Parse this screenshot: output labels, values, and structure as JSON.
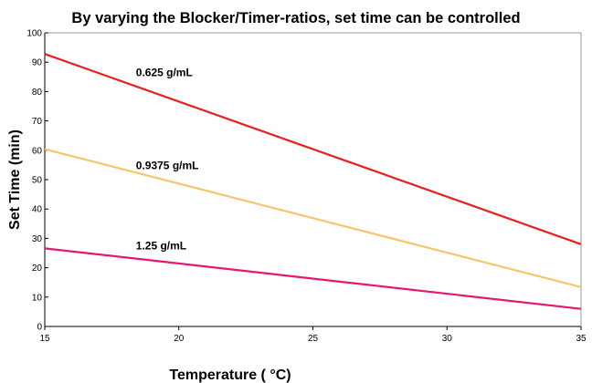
{
  "chart_data": {
    "type": "line",
    "title": "By varying the Blocker/Timer-ratios, set time can be controlled",
    "xlabel": "Temperature ( °C)",
    "ylabel": "Set Time (min)",
    "xlim": [
      15,
      35
    ],
    "ylim": [
      0,
      100
    ],
    "xticks": [
      15,
      20,
      25,
      30,
      35
    ],
    "yticks": [
      0,
      10,
      20,
      30,
      40,
      50,
      60,
      70,
      80,
      90,
      100
    ],
    "grid": false,
    "legend": "none",
    "series": [
      {
        "label": "0.625 g/mL",
        "color": "#e8201e",
        "x": [
          15,
          35
        ],
        "y": [
          92.8,
          28.0
        ],
        "label_at": [
          18.4,
          85.3
        ]
      },
      {
        "label": "0.9375 g/mL",
        "color": "#f5c56a",
        "x": [
          15,
          35
        ],
        "y": [
          60.4,
          13.4
        ],
        "label_at": [
          18.4,
          53.6
        ]
      },
      {
        "label": "1.25 g/mL",
        "color": "#e5176e",
        "x": [
          15,
          35
        ],
        "y": [
          26.6,
          6.0
        ],
        "label_at": [
          18.4,
          26.3
        ]
      }
    ]
  }
}
